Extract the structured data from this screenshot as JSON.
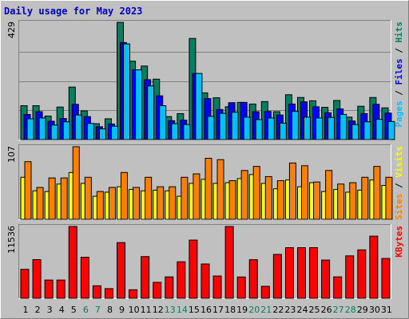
{
  "chart_data": {
    "type": "bar",
    "title": "Daily usage for May 2023",
    "days": [
      "1",
      "2",
      "3",
      "4",
      "5",
      "6",
      "7",
      "8",
      "9",
      "10",
      "11",
      "12",
      "13",
      "14",
      "15",
      "16",
      "17",
      "18",
      "19",
      "20",
      "21",
      "22",
      "23",
      "24",
      "25",
      "26",
      "27",
      "28",
      "29",
      "30",
      "31"
    ],
    "weekend_days": [
      "6",
      "7",
      "13",
      "14",
      "20",
      "21",
      "27",
      "28"
    ],
    "colors": {
      "hits": "#008060",
      "files": "#0000ff",
      "pages": "#00c0ff",
      "visits": "#ffff00",
      "sites": "#ff8000",
      "kbytes": "#ff0000",
      "weekday_label": "#000000",
      "weekend_label": "#00805c",
      "title": "#0000c0"
    },
    "panels": [
      {
        "id": "hits",
        "ymax_label": "429",
        "ymax": 429,
        "legend": [
          {
            "text": "Pages",
            "color": "#00c0ff"
          },
          {
            "text": " / ",
            "color": "#000000"
          },
          {
            "text": "Files",
            "color": "#0000ff"
          },
          {
            "text": " / ",
            "color": "#000000"
          },
          {
            "text": "Hits",
            "color": "#008060"
          }
        ],
        "series": [
          {
            "name": "Hits",
            "color": "#008060",
            "values": [
              124,
              124,
              86,
              119,
              192,
              105,
              58,
              76,
              429,
              287,
              269,
              221,
              84,
              95,
              370,
              171,
              153,
              120,
              136,
              130,
              139,
              102,
              164,
              154,
              142,
              118,
              143,
              82,
              122,
              154,
              116
            ]
          },
          {
            "name": "Files",
            "color": "#0000ff",
            "values": [
              92,
              102,
              67,
              77,
              129,
              84,
              47,
              57,
              355,
              255,
              219,
              160,
              69,
              71,
              242,
              150,
              110,
              135,
              136,
              102,
              103,
              90,
              130,
              138,
              120,
              98,
              112,
              68,
              95,
              129,
              97
            ]
          },
          {
            "name": "Pages",
            "color": "#00c0ff",
            "values": [
              76,
              79,
              53,
              65,
              90,
              59,
              39,
              49,
              350,
              255,
              196,
              124,
              58,
              55,
              242,
              85,
              96,
              100,
              82,
              73,
              79,
              60,
              103,
              82,
              79,
              81,
              92,
              55,
              65,
              74,
              66
            ]
          }
        ]
      },
      {
        "id": "visits",
        "ymax_label": "107",
        "ymax": 107,
        "legend": [
          {
            "text": "Sites",
            "color": "#ff8000"
          },
          {
            "text": " / ",
            "color": "#000000"
          },
          {
            "text": "Visits",
            "color": "#ffff00"
          }
        ],
        "series": [
          {
            "name": "Visits",
            "color": "#ffff00",
            "values": [
              62,
              42,
              41,
              52,
              69,
              53,
              34,
              40,
              48,
              44,
              42,
              43,
              42,
              34,
              53,
              59,
              53,
              54,
              60,
              66,
              53,
              45,
              58,
              48,
              54,
              41,
              44,
              40,
              43,
              58,
              50
            ]
          },
          {
            "name": "Sites",
            "color": "#ff8000",
            "values": [
              85,
              47,
              61,
              61,
              107,
              62,
              41,
              47,
              69,
              47,
              62,
              48,
              48,
              62,
              67,
              90,
              88,
              57,
              72,
              78,
              63,
              57,
              83,
              79,
              55,
              72,
              52,
              54,
              62,
              78,
              62
            ]
          }
        ]
      },
      {
        "id": "kbytes",
        "ymax_label": "11536",
        "ymax": 11536,
        "legend": [
          {
            "text": "KBytes",
            "color": "#ff0000"
          }
        ],
        "series": [
          {
            "name": "KBytes",
            "color": "#ff0000",
            "values": [
              4650,
              6210,
              2930,
              2930,
              11536,
              6590,
              2010,
              1550,
              8950,
              1370,
              6700,
              2560,
              3440,
              5860,
              9350,
              5510,
              3580,
              11536,
              3420,
              6200,
              1920,
              7050,
              8130,
              8130,
              8130,
              6140,
              3440,
              6820,
              7780,
              9980,
              6400
            ]
          }
        ]
      }
    ]
  }
}
